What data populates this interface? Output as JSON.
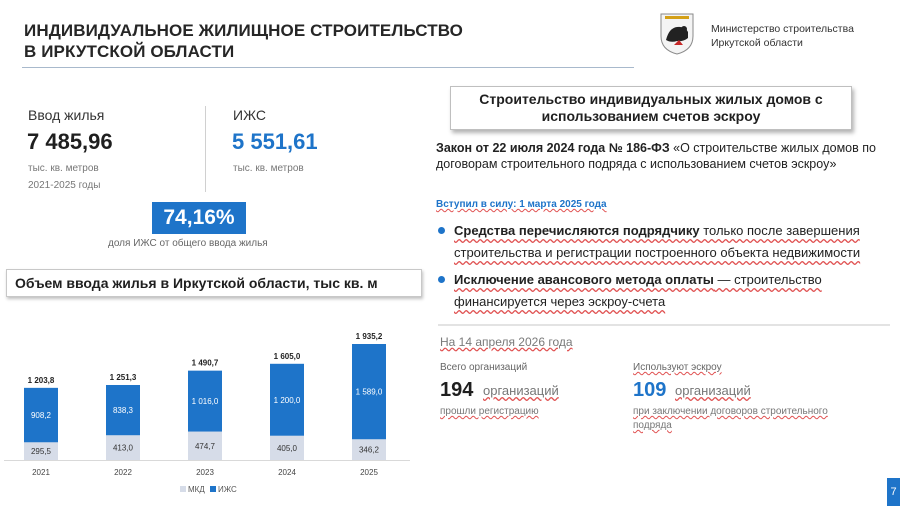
{
  "header": {
    "title_line1": "ИНДИВИДУАЛЬНОЕ ЖИЛИЩНОЕ СТРОИТЕЛЬСТВО",
    "title_line2": "В ИРКУТСКОЙ ОБЛАСТИ",
    "ministry_line1": "Министерство строительства",
    "ministry_line2": "Иркутской области",
    "emblem_icon": "irkutsk-coat-of-arms-icon"
  },
  "stats": {
    "housing": {
      "label": "Ввод жилья",
      "value": "7 485,96",
      "unit": "тыс. кв. метров",
      "period": "2021-2025 годы"
    },
    "izhs": {
      "label": "ИЖС",
      "value": "5 551,61",
      "unit": "тыс. кв. метров"
    },
    "share": {
      "value": "74,16%",
      "caption": "доля ИЖС от общего ввода жилья"
    }
  },
  "chart_title": "Объем ввода жилья в Иркутской области,  тыс кв. м",
  "chart_data": {
    "type": "bar",
    "stacked": true,
    "categories": [
      "2021",
      "2022",
      "2023",
      "2024",
      "2025"
    ],
    "series": [
      {
        "name": "МКД",
        "values": [
          295.5,
          413.0,
          474.7,
          405.0,
          346.2
        ],
        "labels": [
          "295,5",
          "413,0",
          "474,7",
          "405,0",
          "346,2"
        ],
        "color": "#d6dce8"
      },
      {
        "name": "ИЖС",
        "values": [
          908.2,
          838.3,
          1016.0,
          1200.0,
          1589.0
        ],
        "labels": [
          "908,2",
          "838,3",
          "1 016,0",
          "1 200,0",
          "1 589,0"
        ],
        "color": "#1e74c9"
      }
    ],
    "totals": [
      "1 203,8",
      "1 251,3",
      "1 490,7",
      "1 605,0",
      "1 935,2"
    ],
    "legend_position": "bottom",
    "ylim": [
      0,
      1935.2
    ]
  },
  "right": {
    "section_title_line1": "Строительство  индивидуальных  жилых домов с",
    "section_title_line2": "использованием счетов эскроу",
    "law_bold": "Закон от 22 июля 2024 года № 186-ФЗ",
    "law_text": " «О строительстве жилых домов по договорам строительного подряда с использованием счетов эскроу»",
    "effective": "Вступил в силу:  1 марта 2025 года",
    "bullet1_bold": "Средства перечисляются подрядчику",
    "bullet1_text": " только после завершения строительства и регистрации построенного объекта недвижимости",
    "bullet2_bold": "Исключение авансового метода оплаты",
    "bullet2_text": " — строительство финансируется через эскроу-счета",
    "date": "На 14 апреля 2026 года",
    "orgs_total": {
      "label": "Всего организаций",
      "value": "194",
      "unit": "организаций",
      "note": "прошли регистрацию"
    },
    "orgs_escrow": {
      "label": "Используют эскроу",
      "value": "109",
      "unit": "организаций",
      "note_line1": "при заключении договоров строительного",
      "note_line2": "подряда"
    }
  },
  "page_number": "7",
  "colors": {
    "accent": "#1e74c9",
    "mkd": "#d6dce8"
  }
}
